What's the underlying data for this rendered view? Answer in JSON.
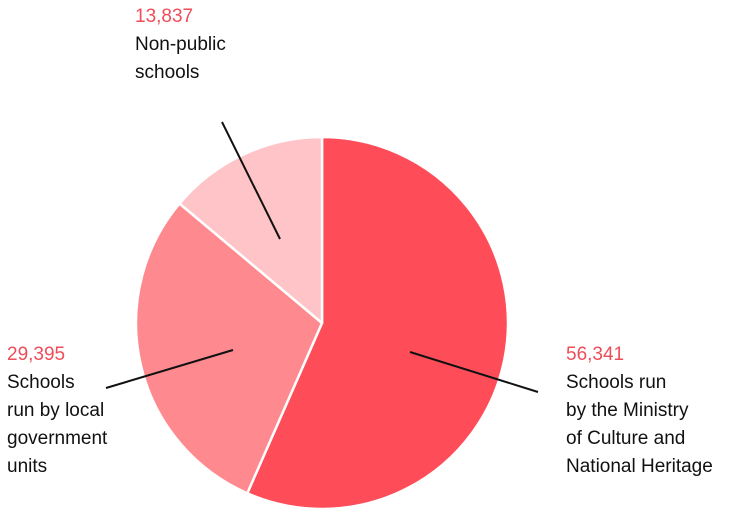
{
  "chart_data": {
    "type": "pie",
    "slices": [
      {
        "label": "Schools run\nby the Ministry\nof Culture and\nNational Heritage",
        "value": 56341,
        "value_text": "56,341",
        "color": "#fe4d59"
      },
      {
        "label": "Schools\nrun by local\ngovernment\nunits",
        "value": 29395,
        "value_text": "29,395",
        "color": "#fe8a8f"
      },
      {
        "label": "Non-public\nschools",
        "value": 13837,
        "value_text": "13,837",
        "color": "#fec4c7"
      }
    ],
    "value_color": "#ef4d59",
    "start_angle_deg": 0,
    "direction": "clockwise",
    "separator_color": "#ffffff",
    "leader_color": "#111111"
  }
}
